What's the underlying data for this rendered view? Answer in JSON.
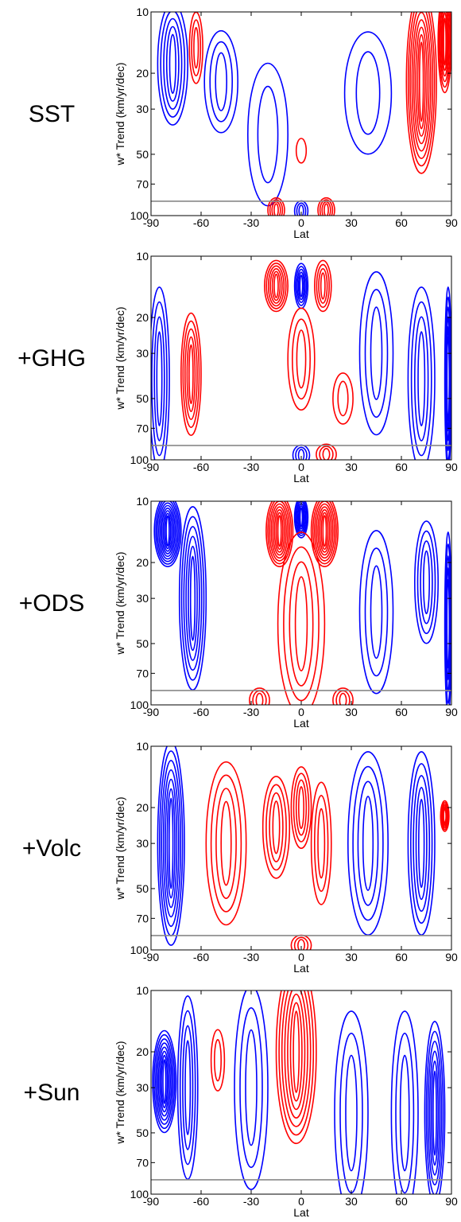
{
  "chart_data": [
    {
      "type": "contour",
      "panel_label": "SST",
      "xlabel": "Lat",
      "ylabel": "w* Trend (km/yr/dec)",
      "x_ticks": [
        -90,
        -60,
        -30,
        0,
        30,
        60,
        90
      ],
      "y_ticks": [
        10,
        20,
        30,
        50,
        70,
        100
      ],
      "xlim": [
        -90,
        90
      ],
      "ylim": [
        100,
        10
      ],
      "y_scale": "log",
      "reference_line_y": 85,
      "colors": {
        "positive": "#ff0000",
        "negative": "#0000ff",
        "reference_line": "#888888"
      },
      "features": [
        {
          "lat": -77,
          "p": 18,
          "sign": "neg",
          "n": 5,
          "w": 9,
          "h": 0.6
        },
        {
          "lat": -63,
          "p": 15,
          "sign": "pos",
          "n": 3,
          "w": 4,
          "h": 0.35
        },
        {
          "lat": -48,
          "p": 22,
          "sign": "neg",
          "n": 3,
          "w": 10,
          "h": 0.5
        },
        {
          "lat": -20,
          "p": 40,
          "sign": "neg",
          "n": 2,
          "w": 12,
          "h": 0.7
        },
        {
          "lat": 0,
          "p": 48,
          "sign": "pos",
          "n": 1,
          "w": 3,
          "h": 0.12
        },
        {
          "lat": 40,
          "p": 25,
          "sign": "neg",
          "n": 2,
          "w": 14,
          "h": 0.6
        },
        {
          "lat": 72,
          "p": 22,
          "sign": "pos",
          "n": 8,
          "w": 9,
          "h": 0.9
        },
        {
          "lat": 86,
          "p": 14,
          "sign": "pos",
          "n": 6,
          "w": 4,
          "h": 0.5
        },
        {
          "lat": -15,
          "p": 94,
          "sign": "pos",
          "n": 4,
          "w": 5,
          "h": 0.12
        },
        {
          "lat": 15,
          "p": 94,
          "sign": "pos",
          "n": 4,
          "w": 5,
          "h": 0.12
        },
        {
          "lat": 0,
          "p": 95,
          "sign": "neg",
          "n": 3,
          "w": 4,
          "h": 0.1
        }
      ]
    },
    {
      "type": "contour",
      "panel_label": "+GHG",
      "xlabel": "Lat",
      "ylabel": "w* Trend (km/yr/dec)",
      "x_ticks": [
        -90,
        -60,
        -30,
        0,
        30,
        60,
        90
      ],
      "y_ticks": [
        10,
        20,
        30,
        50,
        70,
        100
      ],
      "xlim": [
        -90,
        90
      ],
      "ylim": [
        100,
        10
      ],
      "y_scale": "log",
      "reference_line_y": 85,
      "colors": {
        "positive": "#ff0000",
        "negative": "#0000ff",
        "reference_line": "#888888"
      },
      "features": [
        {
          "lat": -85,
          "p": 40,
          "sign": "neg",
          "n": 4,
          "w": 6,
          "h": 0.9
        },
        {
          "lat": -66,
          "p": 38,
          "sign": "pos",
          "n": 5,
          "w": 6,
          "h": 0.6
        },
        {
          "lat": -15,
          "p": 14,
          "sign": "pos",
          "n": 6,
          "w": 7,
          "h": 0.25
        },
        {
          "lat": 0,
          "p": 14,
          "sign": "neg",
          "n": 5,
          "w": 4,
          "h": 0.22
        },
        {
          "lat": 13,
          "p": 14,
          "sign": "pos",
          "n": 4,
          "w": 5,
          "h": 0.25
        },
        {
          "lat": 0,
          "p": 32,
          "sign": "pos",
          "n": 3,
          "w": 8,
          "h": 0.5
        },
        {
          "lat": 25,
          "p": 50,
          "sign": "pos",
          "n": 2,
          "w": 6,
          "h": 0.25
        },
        {
          "lat": 45,
          "p": 30,
          "sign": "neg",
          "n": 3,
          "w": 10,
          "h": 0.8
        },
        {
          "lat": 72,
          "p": 40,
          "sign": "neg",
          "n": 4,
          "w": 8,
          "h": 0.9
        },
        {
          "lat": 88,
          "p": 40,
          "sign": "neg",
          "n": 6,
          "w": 2,
          "h": 0.9
        },
        {
          "lat": 0,
          "p": 95,
          "sign": "neg",
          "n": 3,
          "w": 5,
          "h": 0.1
        },
        {
          "lat": 15,
          "p": 94,
          "sign": "pos",
          "n": 3,
          "w": 6,
          "h": 0.1
        }
      ]
    },
    {
      "type": "contour",
      "panel_label": "+ODS",
      "xlabel": "Lat",
      "ylabel": "w* Trend (km/yr/dec)",
      "x_ticks": [
        -90,
        -60,
        -30,
        0,
        30,
        60,
        90
      ],
      "y_ticks": [
        10,
        20,
        30,
        50,
        70,
        100
      ],
      "xlim": [
        -90,
        90
      ],
      "ylim": [
        100,
        10
      ],
      "y_scale": "log",
      "reference_line_y": 85,
      "colors": {
        "positive": "#ff0000",
        "negative": "#0000ff",
        "reference_line": "#888888"
      },
      "features": [
        {
          "lat": -80,
          "p": 14,
          "sign": "neg",
          "n": 9,
          "w": 8,
          "h": 0.35
        },
        {
          "lat": -65,
          "p": 30,
          "sign": "neg",
          "n": 6,
          "w": 8,
          "h": 0.9
        },
        {
          "lat": -13,
          "p": 14,
          "sign": "pos",
          "n": 8,
          "w": 8,
          "h": 0.35
        },
        {
          "lat": 0,
          "p": 12,
          "sign": "neg",
          "n": 6,
          "w": 4,
          "h": 0.2
        },
        {
          "lat": 14,
          "p": 14,
          "sign": "pos",
          "n": 8,
          "w": 8,
          "h": 0.35
        },
        {
          "lat": 0,
          "p": 40,
          "sign": "pos",
          "n": 4,
          "w": 14,
          "h": 0.9
        },
        {
          "lat": 45,
          "p": 35,
          "sign": "neg",
          "n": 3,
          "w": 10,
          "h": 0.8
        },
        {
          "lat": 75,
          "p": 25,
          "sign": "neg",
          "n": 4,
          "w": 7,
          "h": 0.6
        },
        {
          "lat": 88,
          "p": 40,
          "sign": "neg",
          "n": 5,
          "w": 2,
          "h": 0.9
        },
        {
          "lat": -25,
          "p": 95,
          "sign": "pos",
          "n": 3,
          "w": 6,
          "h": 0.12
        },
        {
          "lat": 25,
          "p": 95,
          "sign": "pos",
          "n": 3,
          "w": 6,
          "h": 0.12
        }
      ]
    },
    {
      "type": "contour",
      "panel_label": "+Volc",
      "xlabel": "Lat",
      "ylabel": "w* Trend (km/yr/dec)",
      "x_ticks": [
        -90,
        -60,
        -30,
        0,
        30,
        60,
        90
      ],
      "y_ticks": [
        10,
        20,
        30,
        50,
        70,
        100
      ],
      "xlim": [
        -90,
        90
      ],
      "ylim": [
        100,
        10
      ],
      "y_scale": "log",
      "reference_line_y": 85,
      "colors": {
        "positive": "#ff0000",
        "negative": "#0000ff",
        "reference_line": "#888888"
      },
      "features": [
        {
          "lat": -78,
          "p": 30,
          "sign": "neg",
          "n": 7,
          "w": 8,
          "h": 1.0
        },
        {
          "lat": -45,
          "p": 30,
          "sign": "pos",
          "n": 4,
          "w": 12,
          "h": 0.8
        },
        {
          "lat": -15,
          "p": 25,
          "sign": "pos",
          "n": 4,
          "w": 8,
          "h": 0.5
        },
        {
          "lat": 0,
          "p": 20,
          "sign": "pos",
          "n": 4,
          "w": 6,
          "h": 0.4
        },
        {
          "lat": 12,
          "p": 30,
          "sign": "pos",
          "n": 3,
          "w": 6,
          "h": 0.6
        },
        {
          "lat": 40,
          "p": 30,
          "sign": "neg",
          "n": 4,
          "w": 12,
          "h": 0.9
        },
        {
          "lat": 72,
          "p": 30,
          "sign": "neg",
          "n": 5,
          "w": 8,
          "h": 0.9
        },
        {
          "lat": 86,
          "p": 22,
          "sign": "pos",
          "n": 6,
          "w": 2.5,
          "h": 0.15
        },
        {
          "lat": 0,
          "p": 95,
          "sign": "pos",
          "n": 3,
          "w": 6,
          "h": 0.1
        }
      ]
    },
    {
      "type": "contour",
      "panel_label": "+Sun",
      "xlabel": "Lat",
      "ylabel": "w* Trend (km/yr/dec)",
      "x_ticks": [
        -90,
        -60,
        -30,
        0,
        30,
        60,
        90
      ],
      "y_ticks": [
        10,
        20,
        30,
        50,
        70,
        100
      ],
      "xlim": [
        -90,
        90
      ],
      "ylim": [
        100,
        10
      ],
      "y_scale": "log",
      "reference_line_y": 85,
      "colors": {
        "positive": "#ff0000",
        "negative": "#0000ff",
        "reference_line": "#888888"
      },
      "features": [
        {
          "lat": -82,
          "p": 28,
          "sign": "neg",
          "n": 8,
          "w": 7,
          "h": 0.5
        },
        {
          "lat": -68,
          "p": 30,
          "sign": "neg",
          "n": 4,
          "w": 6,
          "h": 0.9
        },
        {
          "lat": -50,
          "p": 22,
          "sign": "pos",
          "n": 2,
          "w": 4,
          "h": 0.3
        },
        {
          "lat": -30,
          "p": 30,
          "sign": "neg",
          "n": 3,
          "w": 10,
          "h": 1.0
        },
        {
          "lat": -3,
          "p": 20,
          "sign": "pos",
          "n": 7,
          "w": 12,
          "h": 0.9
        },
        {
          "lat": 30,
          "p": 40,
          "sign": "neg",
          "n": 3,
          "w": 10,
          "h": 1.0
        },
        {
          "lat": 62,
          "p": 40,
          "sign": "neg",
          "n": 3,
          "w": 8,
          "h": 1.0
        },
        {
          "lat": 80,
          "p": 40,
          "sign": "neg",
          "n": 6,
          "w": 6,
          "h": 0.9
        }
      ]
    }
  ]
}
